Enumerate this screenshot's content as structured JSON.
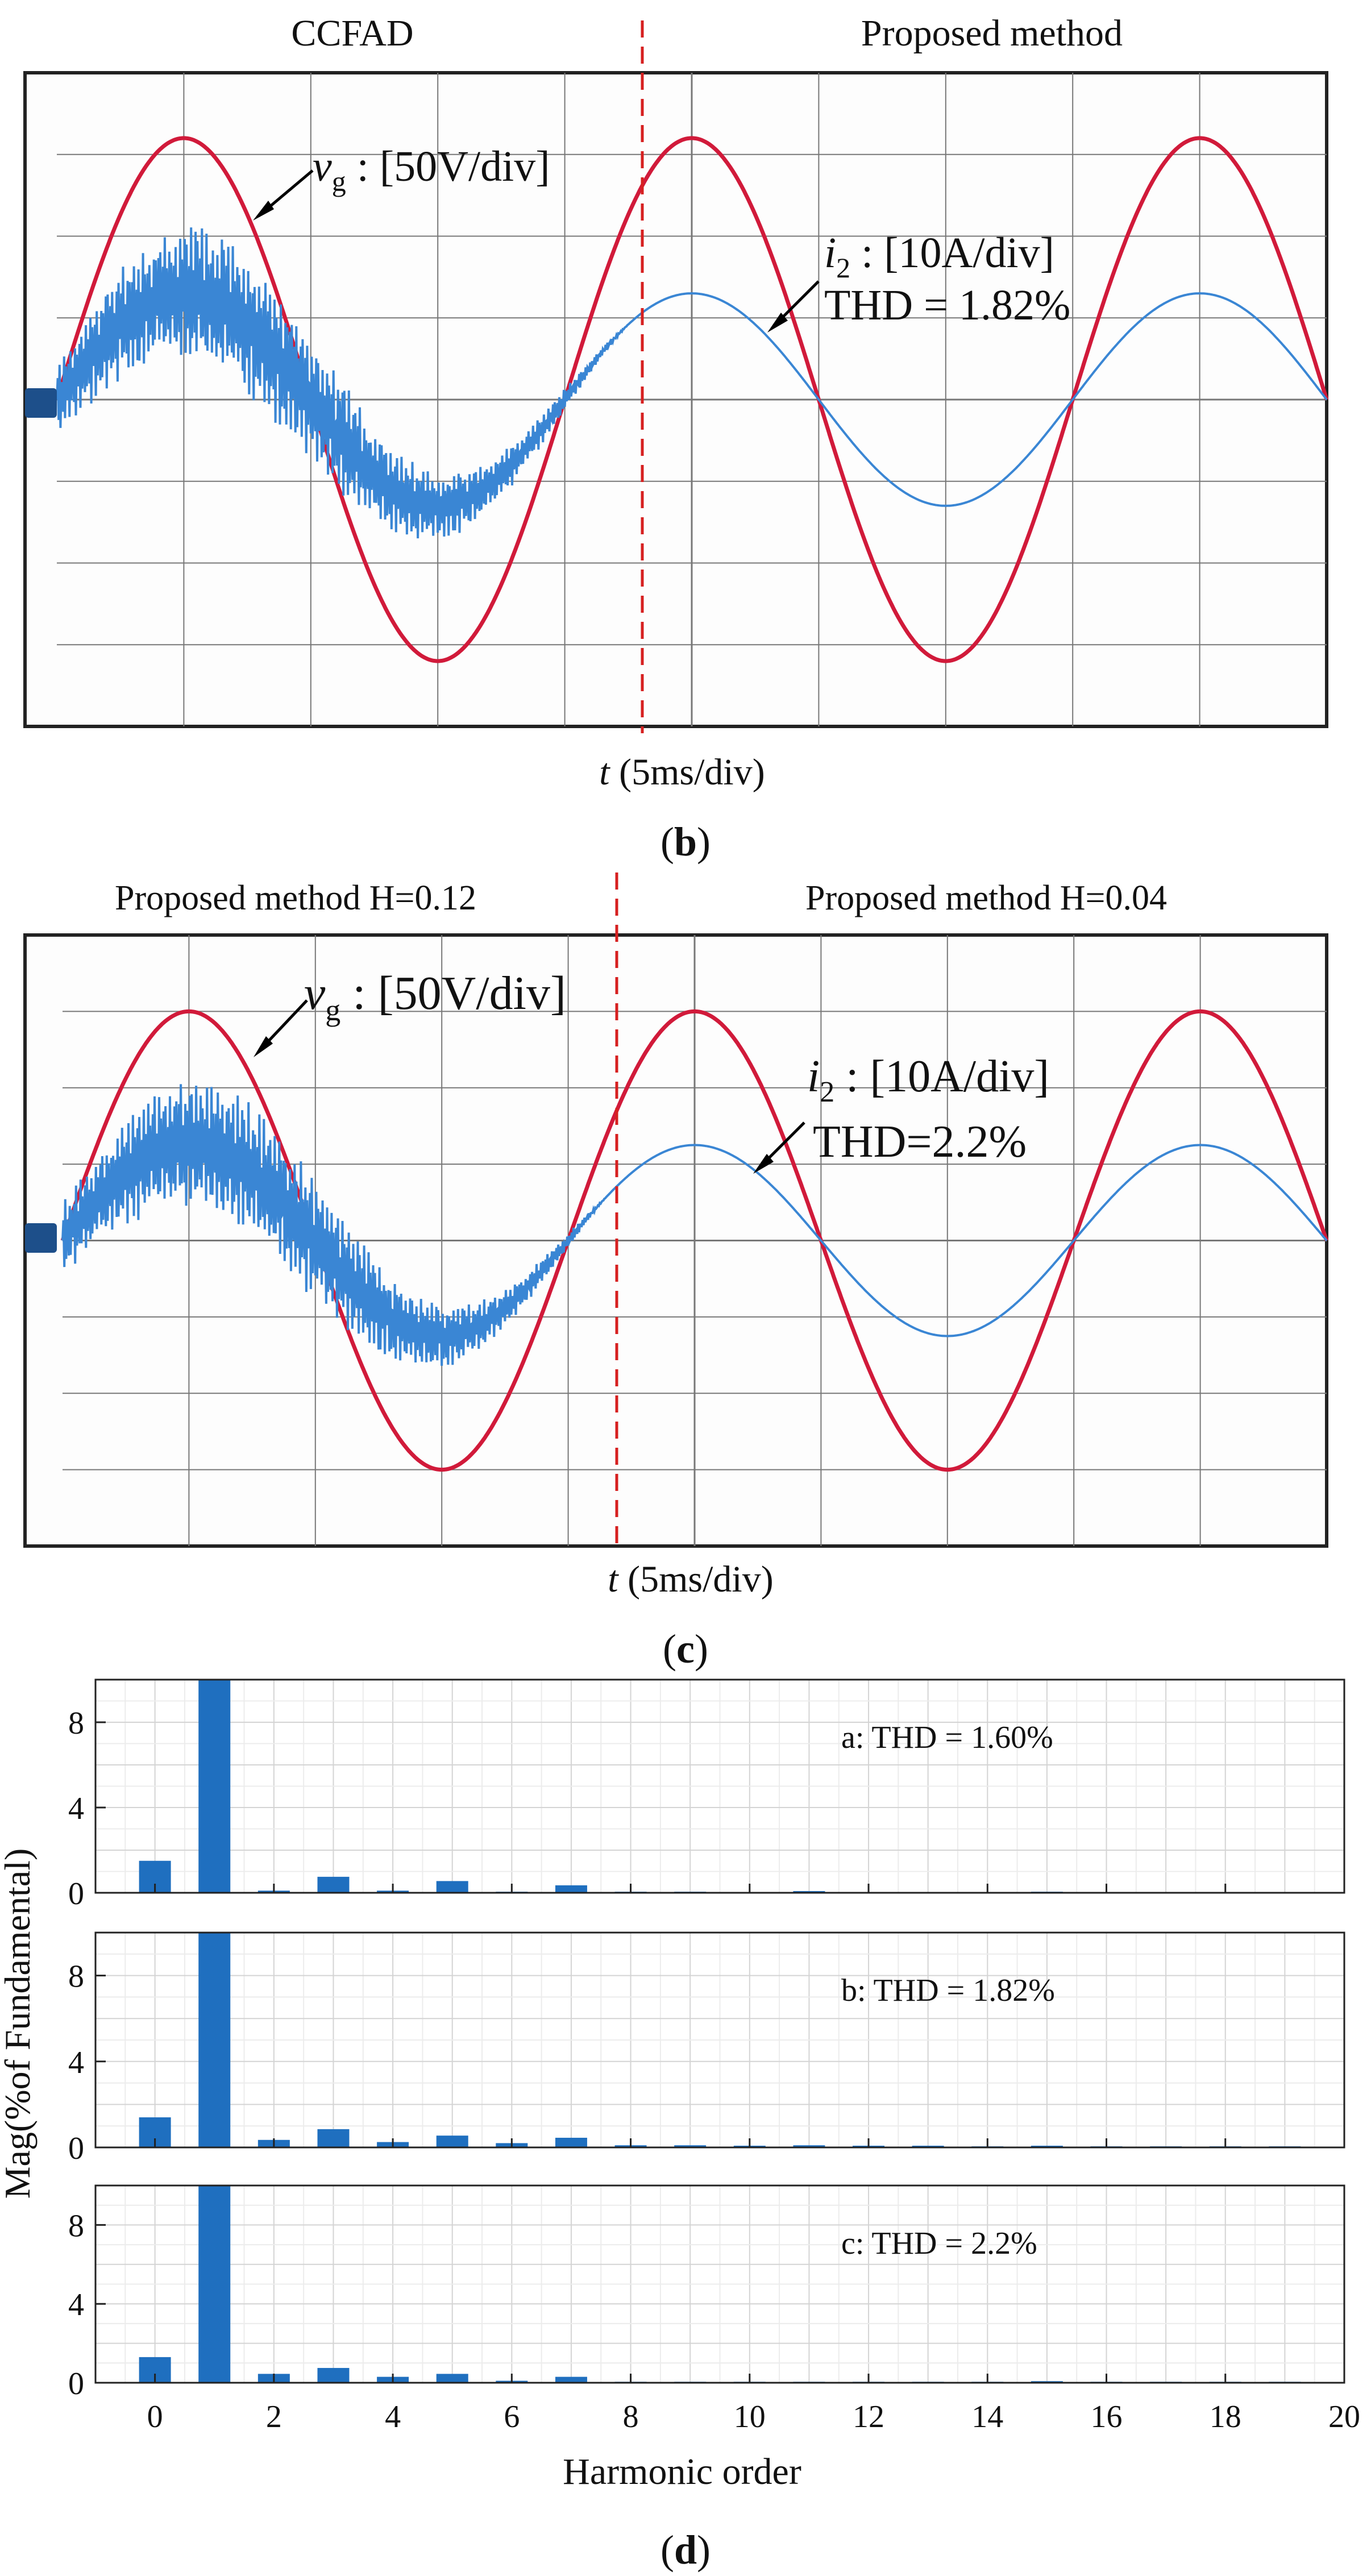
{
  "panel_b": {
    "label": "b",
    "left_title": "CCFAD",
    "right_title": "Proposed method",
    "vg_label": {
      "sym": "v",
      "sub": "g",
      "text": " : [50V/div]"
    },
    "i2_label": {
      "sym": "i",
      "sub": "2",
      "text": " : [10A/div]"
    },
    "thd_text": "THD = 1.82%",
    "xlabel": {
      "sym": "t",
      "text": " (5ms/div)"
    }
  },
  "panel_c": {
    "label": "c",
    "left_title": "Proposed method  H=0.12",
    "right_title": "Proposed method  H=0.04",
    "vg_label": {
      "sym": "v",
      "sub": "g",
      "text": " : [50V/div]"
    },
    "i2_label": {
      "sym": "i",
      "sub": "2",
      "text": " : [10A/div]"
    },
    "thd_text": "THD=2.2%",
    "xlabel": {
      "sym": "t",
      "text": " (5ms/div)"
    }
  },
  "panel_d": {
    "label": "d"
  },
  "colors": {
    "voltage": "#d11a3a",
    "current": "#3a86d4",
    "bar": "#1f6fbf",
    "grid_scope": "#777777",
    "marker": "#d62020"
  },
  "chart_data": [
    {
      "type": "line",
      "title": "CCFAD | Proposed method",
      "xlabel": "t (5ms/div)",
      "ylabel": "",
      "x_unit": "div",
      "x_range": [
        0,
        10
      ],
      "y_range": [
        -4,
        4
      ],
      "transition_div": 4.5,
      "series": [
        {
          "name": "vg",
          "scale": "50V/div",
          "amplitude_div": 3.2,
          "period_div": 4.0,
          "peak_div": 1.0
        },
        {
          "name": "i2",
          "scale": "10A/div",
          "amplitude_div": 1.3,
          "period_div": 4.0,
          "peak_div": 1.0,
          "distortion_before_transition": true,
          "thd_percent": 1.82
        }
      ]
    },
    {
      "type": "line",
      "title": "Proposed method H=0.12 | Proposed method H=0.04",
      "xlabel": "t (5ms/div)",
      "ylabel": "",
      "x_unit": "div",
      "x_range": [
        0,
        10
      ],
      "y_range": [
        -4,
        4
      ],
      "transition_div": 4.3,
      "series": [
        {
          "name": "vg",
          "scale": "50V/div",
          "amplitude_div": 3.0,
          "period_div": 4.0,
          "peak_div": 1.0
        },
        {
          "name": "i2",
          "scale": "10A/div",
          "amplitude_div": 1.25,
          "period_div": 4.0,
          "peak_div": 1.0,
          "distortion_before_transition": true,
          "thd_percent": 2.2
        }
      ]
    },
    {
      "type": "bar",
      "xlabel": "Harmonic order",
      "ylabel": "Mag(%of Fundamental)",
      "xlim": [
        -1,
        20
      ],
      "ylim": [
        0,
        10
      ],
      "xticks": [
        0,
        2,
        4,
        6,
        8,
        10,
        12,
        14,
        16,
        18,
        20
      ],
      "yticks": [
        0,
        4,
        8
      ],
      "categories": [
        0,
        1,
        2,
        3,
        4,
        5,
        6,
        7,
        8,
        9,
        10,
        11,
        12,
        13,
        14,
        15,
        16,
        17,
        18,
        19
      ],
      "series": [
        {
          "name": "a",
          "label": "a:  THD = 1.60%",
          "values": [
            1.5,
            10,
            0.1,
            0.75,
            0.1,
            0.55,
            0.05,
            0.35,
            0.05,
            0.05,
            0.03,
            0.08,
            0.03,
            0.03,
            0.03,
            0.05,
            0.03,
            0.03,
            0.03,
            0.03
          ]
        },
        {
          "name": "b",
          "label": "b:  THD = 1.82%",
          "values": [
            1.4,
            10,
            0.35,
            0.85,
            0.25,
            0.55,
            0.2,
            0.45,
            0.1,
            0.1,
            0.08,
            0.1,
            0.08,
            0.08,
            0.05,
            0.08,
            0.05,
            0.05,
            0.05,
            0.05
          ]
        },
        {
          "name": "c",
          "label": "c:  THD = 2.2%",
          "values": [
            1.3,
            10,
            0.45,
            0.75,
            0.3,
            0.45,
            0.1,
            0.3,
            0.05,
            0.05,
            0.05,
            0.05,
            0.05,
            0.05,
            0.05,
            0.08,
            0.05,
            0.05,
            0.05,
            0.05
          ]
        }
      ]
    }
  ]
}
